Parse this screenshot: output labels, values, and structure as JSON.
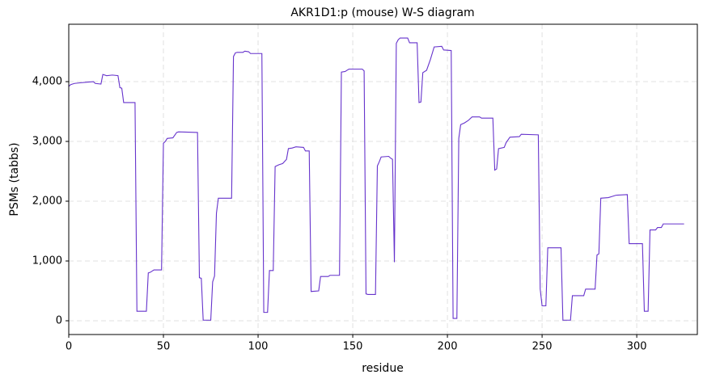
{
  "chart_data": {
    "type": "line",
    "title": "AKR1D1:p (mouse) W-S diagram",
    "xlabel": "residue",
    "ylabel": "PSMs (tabbs)",
    "x": [
      0,
      1,
      3,
      6,
      9,
      13,
      14,
      17,
      18,
      20,
      23,
      26,
      27,
      28,
      29,
      35,
      36,
      41,
      42,
      43,
      45,
      49,
      50,
      51,
      52,
      55,
      57,
      58,
      68,
      69,
      70,
      71,
      75,
      76,
      77,
      78,
      79,
      86,
      87,
      88,
      89,
      92,
      93,
      95,
      96,
      102,
      103,
      105,
      106,
      108,
      109,
      111,
      113,
      115,
      116,
      118,
      120,
      124,
      125,
      127,
      128,
      132,
      133,
      137,
      138,
      143,
      144,
      146,
      147,
      148,
      155,
      156,
      157,
      158,
      162,
      163,
      164,
      165,
      169,
      170,
      171,
      172,
      173,
      174,
      175,
      179,
      180,
      184,
      185,
      186,
      187,
      189,
      191,
      193,
      197,
      198,
      202,
      203,
      205,
      206,
      207,
      209,
      211,
      213,
      217,
      218,
      224,
      225,
      226,
      227,
      230,
      231,
      233,
      238,
      239,
      248,
      249,
      250,
      252,
      253,
      260,
      261,
      265,
      266,
      272,
      273,
      278,
      279,
      280,
      281,
      285,
      287,
      289,
      295,
      296,
      303,
      304,
      306,
      307,
      310,
      311,
      313,
      314,
      325
    ],
    "values": [
      3920,
      3950,
      3970,
      3980,
      3990,
      4000,
      3970,
      3960,
      4120,
      4100,
      4110,
      4100,
      3900,
      3890,
      3650,
      3650,
      160,
      160,
      800,
      810,
      850,
      850,
      2970,
      3000,
      3050,
      3060,
      3150,
      3160,
      3150,
      720,
      710,
      10,
      10,
      650,
      750,
      1800,
      2050,
      2050,
      4420,
      4480,
      4490,
      4490,
      4510,
      4500,
      4470,
      4470,
      140,
      140,
      840,
      840,
      2580,
      2610,
      2630,
      2700,
      2880,
      2890,
      2910,
      2900,
      2840,
      2840,
      490,
      500,
      740,
      740,
      760,
      760,
      4160,
      4170,
      4190,
      4210,
      4210,
      4180,
      450,
      440,
      440,
      2590,
      2660,
      2740,
      2750,
      2720,
      2700,
      980,
      4640,
      4700,
      4730,
      4730,
      4650,
      4650,
      3650,
      3660,
      4150,
      4190,
      4370,
      4580,
      4590,
      4530,
      4520,
      40,
      40,
      3050,
      3280,
      3310,
      3350,
      3410,
      3410,
      3390,
      3390,
      2520,
      2540,
      2880,
      2900,
      2980,
      3070,
      3080,
      3120,
      3110,
      530,
      250,
      250,
      1220,
      1220,
      10,
      10,
      420,
      420,
      530,
      530,
      1100,
      1120,
      2050,
      2060,
      2080,
      2100,
      2110,
      1290,
      1290,
      160,
      160,
      1520,
      1520,
      1560,
      1560,
      1620,
      1620
    ],
    "color": "#6633cc",
    "xlim": [
      0,
      332
    ],
    "xticks": [
      0,
      50,
      100,
      150,
      200,
      250,
      300
    ],
    "ylim": [
      -230,
      4960
    ],
    "yticks": [
      0,
      {
        "value": 1000,
        "label": "1,000"
      },
      {
        "value": 2000,
        "label": "2,000"
      },
      {
        "value": 3000,
        "label": "3,000"
      },
      {
        "value": 4000,
        "label": "4,000"
      }
    ],
    "grid": true
  }
}
